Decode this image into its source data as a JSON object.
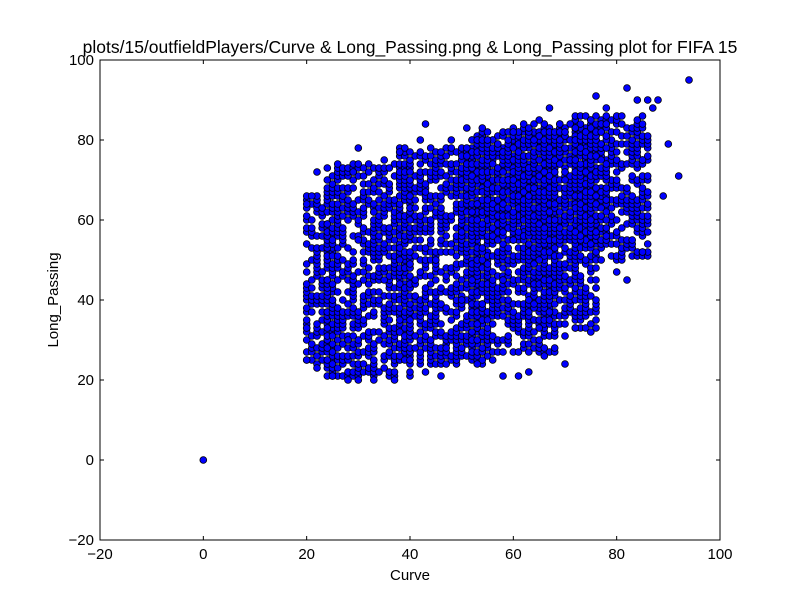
{
  "chart_data": {
    "type": "scatter",
    "title": "plots/15/outfieldPlayers/Curve & Long_Passing.png & Long_Passing plot for FIFA 15",
    "xlabel": "Curve",
    "ylabel": "Long_Passing",
    "xlim": [
      -20,
      100
    ],
    "ylim": [
      -20,
      100
    ],
    "xticks": [
      "−20",
      "0",
      "20",
      "40",
      "60",
      "80",
      "100"
    ],
    "yticks": [
      "−20",
      "0",
      "20",
      "40",
      "60",
      "80",
      "100"
    ],
    "grid": false,
    "marker_color": "#0000ff",
    "marker_edge_color": "#000000",
    "points": [
      [
        0,
        0
      ],
      [
        94,
        95
      ],
      [
        82,
        93
      ],
      [
        88,
        90
      ],
      [
        86,
        90
      ],
      [
        84,
        90
      ],
      [
        76,
        91
      ],
      [
        87,
        88
      ],
      [
        90,
        79
      ],
      [
        92,
        71
      ],
      [
        89,
        66
      ],
      [
        86,
        54
      ],
      [
        85,
        52
      ],
      [
        82,
        45
      ],
      [
        80,
        47
      ],
      [
        76,
        43
      ],
      [
        75,
        32
      ],
      [
        72,
        33
      ],
      [
        70,
        31
      ],
      [
        67,
        37
      ],
      [
        65,
        33
      ],
      [
        66,
        26
      ],
      [
        70,
        24
      ],
      [
        63,
        22
      ],
      [
        61,
        21
      ],
      [
        58,
        21
      ],
      [
        56,
        25
      ],
      [
        53,
        24
      ],
      [
        50,
        28
      ],
      [
        47,
        28
      ],
      [
        46,
        21
      ],
      [
        43,
        22
      ],
      [
        37,
        20
      ],
      [
        33,
        20
      ],
      [
        30,
        20
      ],
      [
        28,
        20
      ],
      [
        25,
        21
      ],
      [
        22,
        23
      ],
      [
        20,
        25
      ],
      [
        20,
        33
      ],
      [
        20,
        64
      ],
      [
        21,
        66
      ],
      [
        22,
        72
      ],
      [
        24,
        70
      ],
      [
        29,
        72
      ],
      [
        30,
        78
      ],
      [
        35,
        75
      ],
      [
        38,
        77
      ],
      [
        40,
        72
      ],
      [
        42,
        80
      ],
      [
        43,
        84
      ],
      [
        46,
        77
      ],
      [
        48,
        80
      ],
      [
        51,
        83
      ],
      [
        54,
        83
      ],
      [
        55,
        80
      ],
      [
        57,
        79
      ],
      [
        60,
        82
      ],
      [
        63,
        83
      ],
      [
        65,
        85
      ],
      [
        67,
        88
      ],
      [
        69,
        84
      ],
      [
        72,
        83
      ],
      [
        75,
        85
      ],
      [
        78,
        88
      ],
      [
        60,
        55
      ],
      [
        45,
        50
      ],
      [
        35,
        45
      ],
      [
        25,
        40
      ],
      [
        55,
        65
      ],
      [
        70,
        70
      ],
      [
        80,
        72
      ],
      [
        50,
        40
      ],
      [
        40,
        60
      ],
      [
        30,
        55
      ],
      [
        65,
        50
      ],
      [
        75,
        60
      ],
      [
        85,
        75
      ],
      [
        48,
        35
      ],
      [
        38,
        35
      ],
      [
        28,
        30
      ],
      [
        58,
        45
      ],
      [
        68,
        60
      ],
      [
        78,
        65
      ],
      [
        33,
        62
      ],
      [
        43,
        67
      ]
    ],
    "clusters": [
      {
        "curve": [
          20,
          25
        ],
        "long_passing": [
          24,
          66
        ]
      },
      {
        "curve": [
          24,
          40
        ],
        "long_passing": [
          21,
          74
        ]
      },
      {
        "curve": [
          38,
          55
        ],
        "long_passing": [
          24,
          78
        ]
      },
      {
        "curve": [
          52,
          68
        ],
        "long_passing": [
          27,
          82
        ]
      },
      {
        "curve": [
          63,
          76
        ],
        "long_passing": [
          33,
          83
        ]
      },
      {
        "curve": [
          72,
          86
        ],
        "long_passing": [
          50,
          86
        ]
      },
      {
        "curve": [
          50,
          62
        ],
        "long_passing": [
          55,
          80
        ]
      },
      {
        "curve": [
          60,
          78
        ],
        "long_passing": [
          55,
          84
        ]
      }
    ]
  }
}
